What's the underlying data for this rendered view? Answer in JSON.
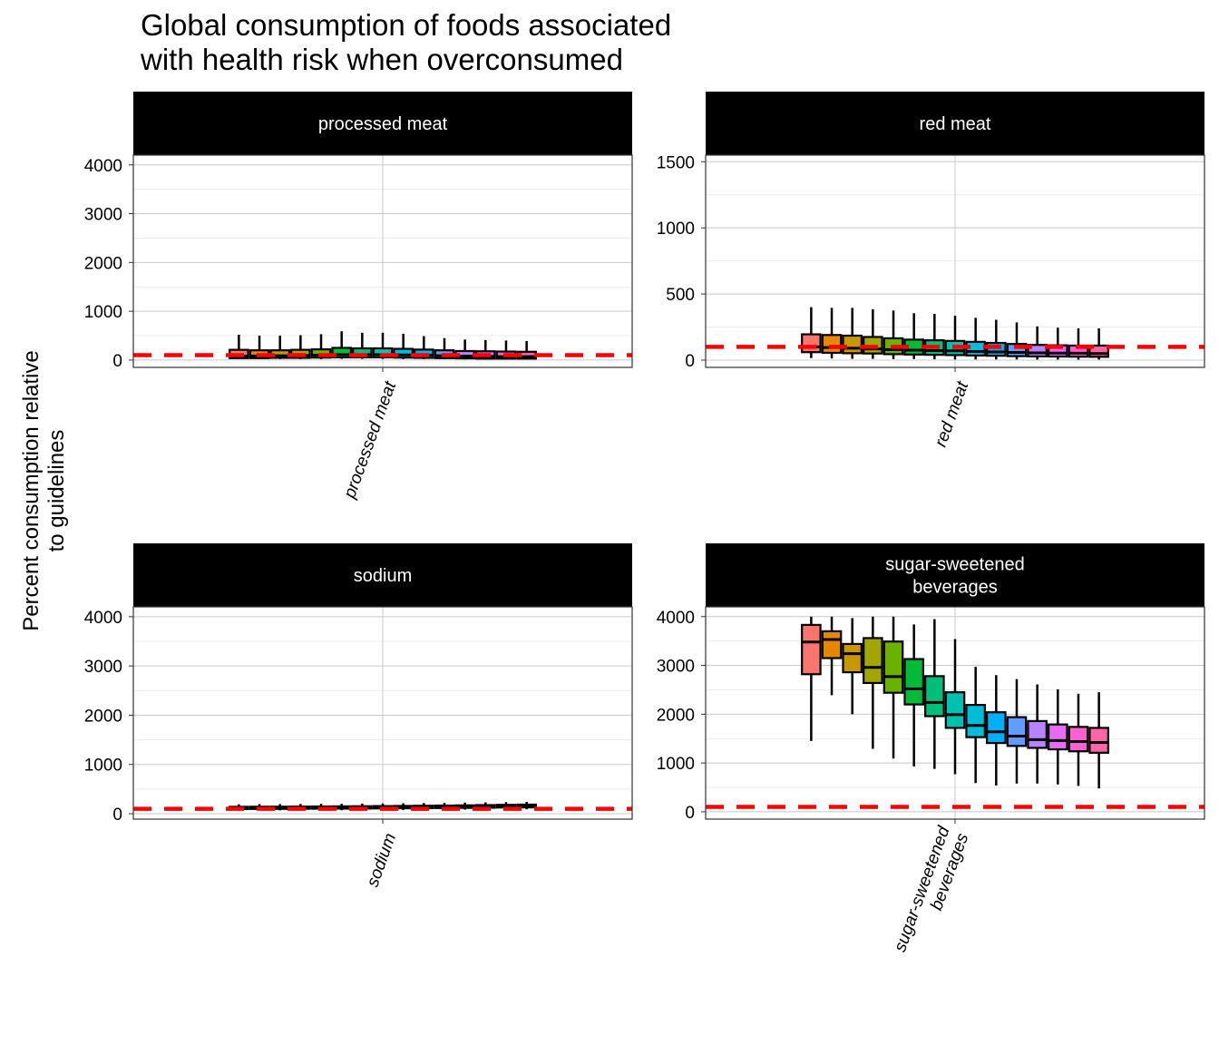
{
  "chart_data": {
    "type": "boxplot",
    "title_lines": [
      "Global consumption of foods associated",
      "with health risk when overconsumed"
    ],
    "ylabel_lines": [
      "Percent consumption relative",
      "to guidelines"
    ],
    "xlabel": "",
    "reference_line": {
      "y": 100,
      "color": "#FF0000",
      "style": "dashed"
    },
    "grid": true,
    "legend": "none",
    "series_colors": [
      "#F8766D",
      "#E58700",
      "#C99800",
      "#A3A500",
      "#6BB100",
      "#00BA38",
      "#00BF7D",
      "#00C0AF",
      "#00BCD8",
      "#00B0F6",
      "#619CFF",
      "#B983FF",
      "#E76BF3",
      "#FD61D1",
      "#FF67A4"
    ],
    "facets": [
      {
        "strip_lines": [
          "processed meat"
        ],
        "xtick_lines": [
          "processed meat"
        ],
        "ylim": [
          -150,
          4200
        ],
        "yticks": [
          0,
          1000,
          2000,
          3000,
          4000
        ],
        "boxes": [
          {
            "q1": 40,
            "median": 80,
            "q3": 210,
            "lower": 20,
            "upper": 520
          },
          {
            "q1": 40,
            "median": 85,
            "q3": 200,
            "lower": 20,
            "upper": 500
          },
          {
            "q1": 45,
            "median": 90,
            "q3": 200,
            "lower": 20,
            "upper": 500
          },
          {
            "q1": 45,
            "median": 95,
            "q3": 210,
            "lower": 20,
            "upper": 510
          },
          {
            "q1": 50,
            "median": 100,
            "q3": 220,
            "lower": 20,
            "upper": 530
          },
          {
            "q1": 55,
            "median": 110,
            "q3": 250,
            "lower": 25,
            "upper": 590
          },
          {
            "q1": 55,
            "median": 110,
            "q3": 240,
            "lower": 25,
            "upper": 560
          },
          {
            "q1": 55,
            "median": 110,
            "q3": 240,
            "lower": 25,
            "upper": 560
          },
          {
            "q1": 50,
            "median": 105,
            "q3": 230,
            "lower": 20,
            "upper": 540
          },
          {
            "q1": 45,
            "median": 100,
            "q3": 215,
            "lower": 20,
            "upper": 490
          },
          {
            "q1": 40,
            "median": 90,
            "q3": 200,
            "lower": 20,
            "upper": 450
          },
          {
            "q1": 35,
            "median": 80,
            "q3": 185,
            "lower": 15,
            "upper": 420
          },
          {
            "q1": 30,
            "median": 75,
            "q3": 180,
            "lower": 15,
            "upper": 410
          },
          {
            "q1": 30,
            "median": 70,
            "q3": 175,
            "lower": 15,
            "upper": 400
          },
          {
            "q1": 30,
            "median": 70,
            "q3": 170,
            "lower": 15,
            "upper": 390
          }
        ]
      },
      {
        "strip_lines": [
          "red meat"
        ],
        "xtick_lines": [
          "red meat"
        ],
        "ylim": [
          -55,
          1550
        ],
        "yticks": [
          0,
          500,
          1000,
          1500
        ],
        "boxes": [
          {
            "q1": 60,
            "median": 100,
            "q3": 195,
            "lower": 15,
            "upper": 400
          },
          {
            "q1": 55,
            "median": 95,
            "q3": 190,
            "lower": 12,
            "upper": 395
          },
          {
            "q1": 52,
            "median": 90,
            "q3": 185,
            "lower": 10,
            "upper": 395
          },
          {
            "q1": 50,
            "median": 85,
            "q3": 175,
            "lower": 10,
            "upper": 385
          },
          {
            "q1": 45,
            "median": 80,
            "q3": 165,
            "lower": 8,
            "upper": 375
          },
          {
            "q1": 42,
            "median": 75,
            "q3": 155,
            "lower": 8,
            "upper": 355
          },
          {
            "q1": 40,
            "median": 72,
            "q3": 150,
            "lower": 6,
            "upper": 350
          },
          {
            "q1": 38,
            "median": 70,
            "q3": 145,
            "lower": 5,
            "upper": 335
          },
          {
            "q1": 35,
            "median": 65,
            "q3": 138,
            "lower": 5,
            "upper": 320
          },
          {
            "q1": 33,
            "median": 62,
            "q3": 130,
            "lower": 5,
            "upper": 305
          },
          {
            "q1": 30,
            "median": 58,
            "q3": 122,
            "lower": 5,
            "upper": 285
          },
          {
            "q1": 28,
            "median": 55,
            "q3": 115,
            "lower": 4,
            "upper": 255
          },
          {
            "q1": 27,
            "median": 53,
            "q3": 112,
            "lower": 4,
            "upper": 245
          },
          {
            "q1": 26,
            "median": 52,
            "q3": 110,
            "lower": 4,
            "upper": 240
          },
          {
            "q1": 25,
            "median": 50,
            "q3": 110,
            "lower": 4,
            "upper": 240
          }
        ]
      },
      {
        "strip_lines": [
          "sodium"
        ],
        "xtick_lines": [
          "sodium"
        ],
        "ylim": [
          -110,
          4200
        ],
        "yticks": [
          0,
          1000,
          2000,
          3000,
          4000
        ],
        "boxes": [
          {
            "q1": 95,
            "median": 115,
            "q3": 140,
            "lower": 65,
            "upper": 190
          },
          {
            "q1": 97,
            "median": 117,
            "q3": 142,
            "lower": 65,
            "upper": 195
          },
          {
            "q1": 98,
            "median": 118,
            "q3": 143,
            "lower": 67,
            "upper": 195
          },
          {
            "q1": 100,
            "median": 120,
            "q3": 145,
            "lower": 68,
            "upper": 198
          },
          {
            "q1": 102,
            "median": 122,
            "q3": 147,
            "lower": 70,
            "upper": 200
          },
          {
            "q1": 103,
            "median": 124,
            "q3": 150,
            "lower": 70,
            "upper": 202
          },
          {
            "q1": 105,
            "median": 126,
            "q3": 152,
            "lower": 72,
            "upper": 205
          },
          {
            "q1": 107,
            "median": 128,
            "q3": 155,
            "lower": 73,
            "upper": 208
          },
          {
            "q1": 110,
            "median": 131,
            "q3": 158,
            "lower": 75,
            "upper": 212
          },
          {
            "q1": 112,
            "median": 134,
            "q3": 162,
            "lower": 77,
            "upper": 216
          },
          {
            "q1": 115,
            "median": 137,
            "q3": 166,
            "lower": 80,
            "upper": 220
          },
          {
            "q1": 118,
            "median": 141,
            "q3": 170,
            "lower": 82,
            "upper": 225
          },
          {
            "q1": 121,
            "median": 145,
            "q3": 175,
            "lower": 85,
            "upper": 230
          },
          {
            "q1": 125,
            "median": 150,
            "q3": 180,
            "lower": 88,
            "upper": 235
          },
          {
            "q1": 128,
            "median": 154,
            "q3": 185,
            "lower": 90,
            "upper": 240
          }
        ]
      },
      {
        "strip_lines": [
          "sugar-sweetened",
          "beverages"
        ],
        "xtick_lines": [
          "sugar-sweetened",
          "beverages"
        ],
        "ylim": [
          -150,
          4200
        ],
        "yticks": [
          0,
          1000,
          2000,
          3000,
          4000
        ],
        "boxes": [
          {
            "q1": 2820,
            "median": 3480,
            "q3": 3830,
            "lower": 1450,
            "upper": 4000
          },
          {
            "q1": 3150,
            "median": 3530,
            "q3": 3700,
            "lower": 2390,
            "upper": 4000
          },
          {
            "q1": 2860,
            "median": 3240,
            "q3": 3440,
            "lower": 2000,
            "upper": 3970
          },
          {
            "q1": 2640,
            "median": 2960,
            "q3": 3560,
            "lower": 1290,
            "upper": 4000
          },
          {
            "q1": 2440,
            "median": 2770,
            "q3": 3490,
            "lower": 1090,
            "upper": 4000
          },
          {
            "q1": 2200,
            "median": 2520,
            "q3": 3130,
            "lower": 930,
            "upper": 3840
          },
          {
            "q1": 1960,
            "median": 2240,
            "q3": 2780,
            "lower": 880,
            "upper": 3950
          },
          {
            "q1": 1720,
            "median": 1990,
            "q3": 2450,
            "lower": 770,
            "upper": 3540
          },
          {
            "q1": 1530,
            "median": 1770,
            "q3": 2190,
            "lower": 590,
            "upper": 2970
          },
          {
            "q1": 1410,
            "median": 1640,
            "q3": 2040,
            "lower": 540,
            "upper": 2800
          },
          {
            "q1": 1350,
            "median": 1550,
            "q3": 1940,
            "lower": 580,
            "upper": 2720
          },
          {
            "q1": 1310,
            "median": 1480,
            "q3": 1860,
            "lower": 580,
            "upper": 2610
          },
          {
            "q1": 1280,
            "median": 1460,
            "q3": 1790,
            "lower": 560,
            "upper": 2510
          },
          {
            "q1": 1240,
            "median": 1440,
            "q3": 1740,
            "lower": 530,
            "upper": 2420
          },
          {
            "q1": 1210,
            "median": 1420,
            "q3": 1720,
            "lower": 480,
            "upper": 2450
          }
        ]
      }
    ]
  }
}
